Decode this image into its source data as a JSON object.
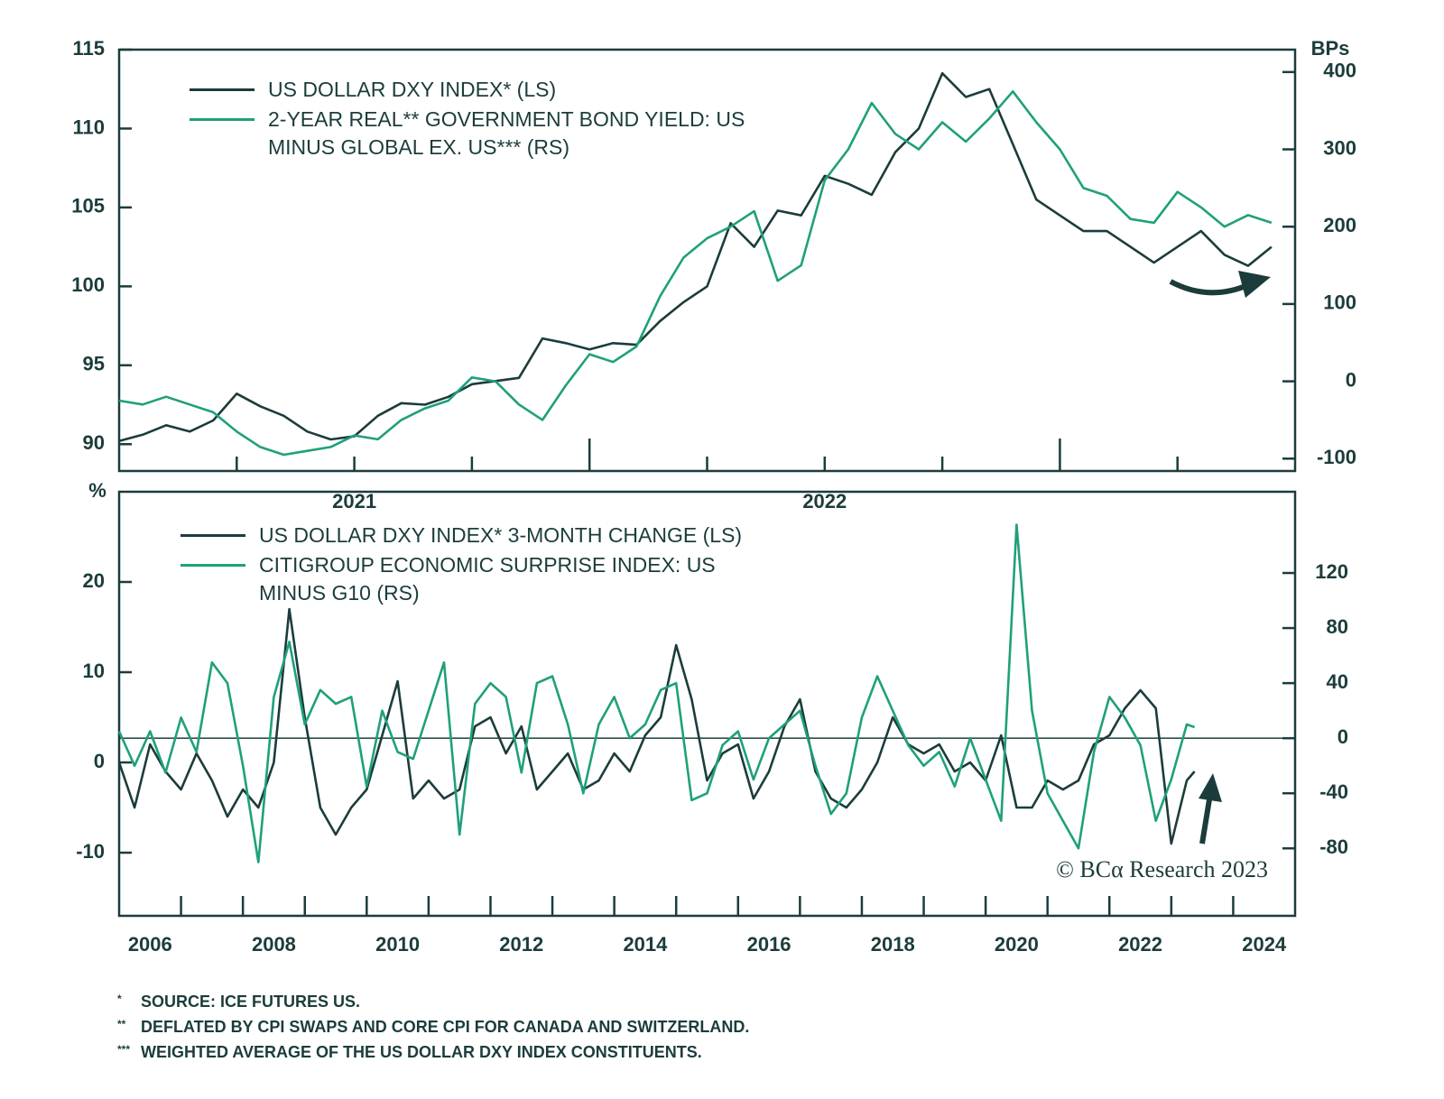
{
  "chart_data": [
    {
      "type": "line",
      "x": [
        2021,
        2021.05,
        2021.1,
        2021.15,
        2021.2,
        2021.25,
        2021.3,
        2021.35,
        2021.4,
        2021.45,
        2021.5,
        2021.55,
        2021.6,
        2021.65,
        2021.7,
        2021.75,
        2021.8,
        2021.85,
        2021.9,
        2021.95,
        2022,
        2022.05,
        2022.1,
        2022.15,
        2022.2,
        2022.25,
        2022.3,
        2022.35,
        2022.4,
        2022.45,
        2022.5,
        2022.55,
        2022.6,
        2022.65,
        2022.7,
        2022.75,
        2022.8,
        2022.85,
        2022.9,
        2022.95,
        2023,
        2023.05,
        2023.1,
        2023.15,
        2023.2,
        2023.25,
        2023.3,
        2023.35,
        2023.4,
        2023.45
      ],
      "xlim": [
        2021,
        2023.5
      ],
      "xticks": [
        2021.25,
        2021.5,
        2021.75,
        2022,
        2022.25,
        2022.5,
        2022.75,
        2023,
        2023.25
      ],
      "xlabels": [
        {
          "value": 2021.5,
          "label": "2021"
        },
        {
          "value": 2022.5,
          "label": "2022"
        }
      ],
      "ylim": [
        88.3,
        115
      ],
      "yticks": [
        90,
        95,
        100,
        105,
        110,
        115
      ],
      "y2lim": [
        -116,
        429
      ],
      "y2ticks": [
        -100,
        0,
        100,
        200,
        300,
        400
      ],
      "y2label": "BPs",
      "legend": "upper left",
      "series": [
        {
          "name": "US DOLLAR DXY INDEX* (LS)",
          "color": "#1c3c3c",
          "axis": "y",
          "values": [
            90.2,
            90.6,
            91.2,
            90.8,
            91.5,
            93.2,
            92.4,
            91.8,
            90.8,
            90.3,
            90.5,
            91.8,
            92.6,
            92.5,
            93.0,
            93.8,
            94.0,
            94.2,
            96.7,
            96.4,
            96.0,
            96.4,
            96.3,
            97.8,
            99.0,
            100.0,
            104.0,
            102.5,
            104.8,
            104.5,
            107.0,
            106.5,
            105.8,
            108.5,
            110.0,
            113.5,
            112.0,
            112.5,
            109.0,
            105.5,
            104.5,
            103.5,
            103.5,
            102.5,
            101.5,
            102.5,
            103.5,
            102.0,
            101.3,
            102.5
          ]
        },
        {
          "name": "2-YEAR REAL** GOVERNMENT BOND YIELD: US MINUS GLOBAL EX. US*** (RS)",
          "color": "#1fa07b",
          "axis": "y2",
          "values": [
            -25,
            -30,
            -20,
            -30,
            -40,
            -65,
            -85,
            -95,
            -90,
            -85,
            -70,
            -75,
            -50,
            -35,
            -25,
            5,
            0,
            -30,
            -50,
            -5,
            35,
            25,
            45,
            110,
            160,
            185,
            200,
            220,
            130,
            150,
            260,
            300,
            360,
            320,
            300,
            335,
            310,
            340,
            375,
            335,
            300,
            250,
            240,
            210,
            205,
            245,
            225,
            200,
            215,
            205
          ]
        }
      ]
    },
    {
      "type": "line",
      "x": [
        2006,
        2006.25,
        2006.5,
        2006.75,
        2007,
        2007.25,
        2007.5,
        2007.75,
        2008,
        2008.25,
        2008.5,
        2008.75,
        2009,
        2009.25,
        2009.5,
        2009.75,
        2010,
        2010.25,
        2010.5,
        2010.75,
        2011,
        2011.25,
        2011.5,
        2011.75,
        2012,
        2012.25,
        2012.5,
        2012.75,
        2013,
        2013.25,
        2013.5,
        2013.75,
        2014,
        2014.25,
        2014.5,
        2014.75,
        2015,
        2015.25,
        2015.5,
        2015.75,
        2016,
        2016.25,
        2016.5,
        2016.75,
        2017,
        2017.25,
        2017.5,
        2017.75,
        2018,
        2018.25,
        2018.5,
        2018.75,
        2019,
        2019.25,
        2019.5,
        2019.75,
        2020,
        2020.25,
        2020.5,
        2020.75,
        2021,
        2021.25,
        2021.5,
        2021.75,
        2022,
        2022.25,
        2022.5,
        2022.75,
        2023,
        2023.25,
        2023.375
      ],
      "xlim": [
        2006,
        2025
      ],
      "xticks": [
        2007,
        2008,
        2009,
        2010,
        2011,
        2012,
        2013,
        2014,
        2015,
        2016,
        2017,
        2018,
        2019,
        2020,
        2021,
        2022,
        2023,
        2024
      ],
      "xlabels": [
        {
          "value": 2006.5,
          "label": "2006"
        },
        {
          "value": 2008.5,
          "label": "2008"
        },
        {
          "value": 2010.5,
          "label": "2010"
        },
        {
          "value": 2012.5,
          "label": "2012"
        },
        {
          "value": 2014.5,
          "label": "2014"
        },
        {
          "value": 2016.5,
          "label": "2016"
        },
        {
          "value": 2018.5,
          "label": "2018"
        },
        {
          "value": 2020.5,
          "label": "2020"
        },
        {
          "value": 2022.5,
          "label": "2022"
        },
        {
          "value": 2024.5,
          "label": "2024"
        }
      ],
      "ylim": [
        -17,
        30
      ],
      "yticks": [
        -10,
        0,
        10,
        20
      ],
      "y2lim": [
        -129,
        179
      ],
      "y2ticks": [
        -80,
        -40,
        0,
        40,
        80,
        120
      ],
      "ylabel": "%",
      "hlines": [
        {
          "axis": "y2",
          "value": 0
        }
      ],
      "annotation": "© BCα Research 2023",
      "legend": "upper left",
      "series": [
        {
          "name": "US DOLLAR DXY INDEX* 3-MONTH CHANGE (LS)",
          "color": "#1c3c3c",
          "axis": "y",
          "values": [
            0,
            -5,
            2,
            -1,
            -3,
            1,
            -2,
            -6,
            -3,
            -5,
            0,
            17,
            5,
            -5,
            -8,
            -5,
            -3,
            3,
            9,
            -4,
            -2,
            -4,
            -3,
            4,
            5,
            1,
            4,
            -3,
            -1,
            1,
            -3,
            -2,
            1,
            -1,
            3,
            5,
            13,
            7,
            -2,
            1,
            2,
            -4,
            -1,
            4,
            7,
            -1,
            -4,
            -5,
            -3,
            0,
            5,
            2,
            1,
            2,
            -1,
            0,
            -2,
            3,
            -5,
            -5,
            -2,
            -3,
            -2,
            2,
            3,
            6,
            8,
            6,
            -9,
            -2,
            -1
          ]
        },
        {
          "name": "CITIGROUP ECONOMIC SURPRISE INDEX: US MINUS G10 (RS)",
          "color": "#1fa07b",
          "axis": "y2",
          "values": [
            5,
            -20,
            5,
            -25,
            15,
            -10,
            55,
            40,
            -20,
            -90,
            30,
            70,
            10,
            35,
            25,
            30,
            -35,
            20,
            -10,
            -15,
            20,
            55,
            -70,
            25,
            40,
            30,
            -25,
            40,
            45,
            10,
            -40,
            10,
            30,
            0,
            10,
            35,
            40,
            -45,
            -40,
            -5,
            5,
            -30,
            0,
            10,
            20,
            -20,
            -55,
            -40,
            15,
            45,
            20,
            -5,
            -20,
            -10,
            -35,
            0,
            -30,
            -60,
            155,
            20,
            -40,
            -60,
            -80,
            -10,
            30,
            15,
            -5,
            -60,
            -30,
            10,
            8
          ]
        }
      ]
    }
  ],
  "footnotes": [
    {
      "marker": "*",
      "text": "SOURCE: ICE FUTURES US."
    },
    {
      "marker": "**",
      "text": "DEFLATED BY CPI SWAPS AND CORE CPI FOR CANADA AND SWITZERLAND."
    },
    {
      "marker": "***",
      "text": "WEIGHTED AVERAGE OF THE US DOLLAR DXY INDEX CONSTITUENTS."
    }
  ]
}
